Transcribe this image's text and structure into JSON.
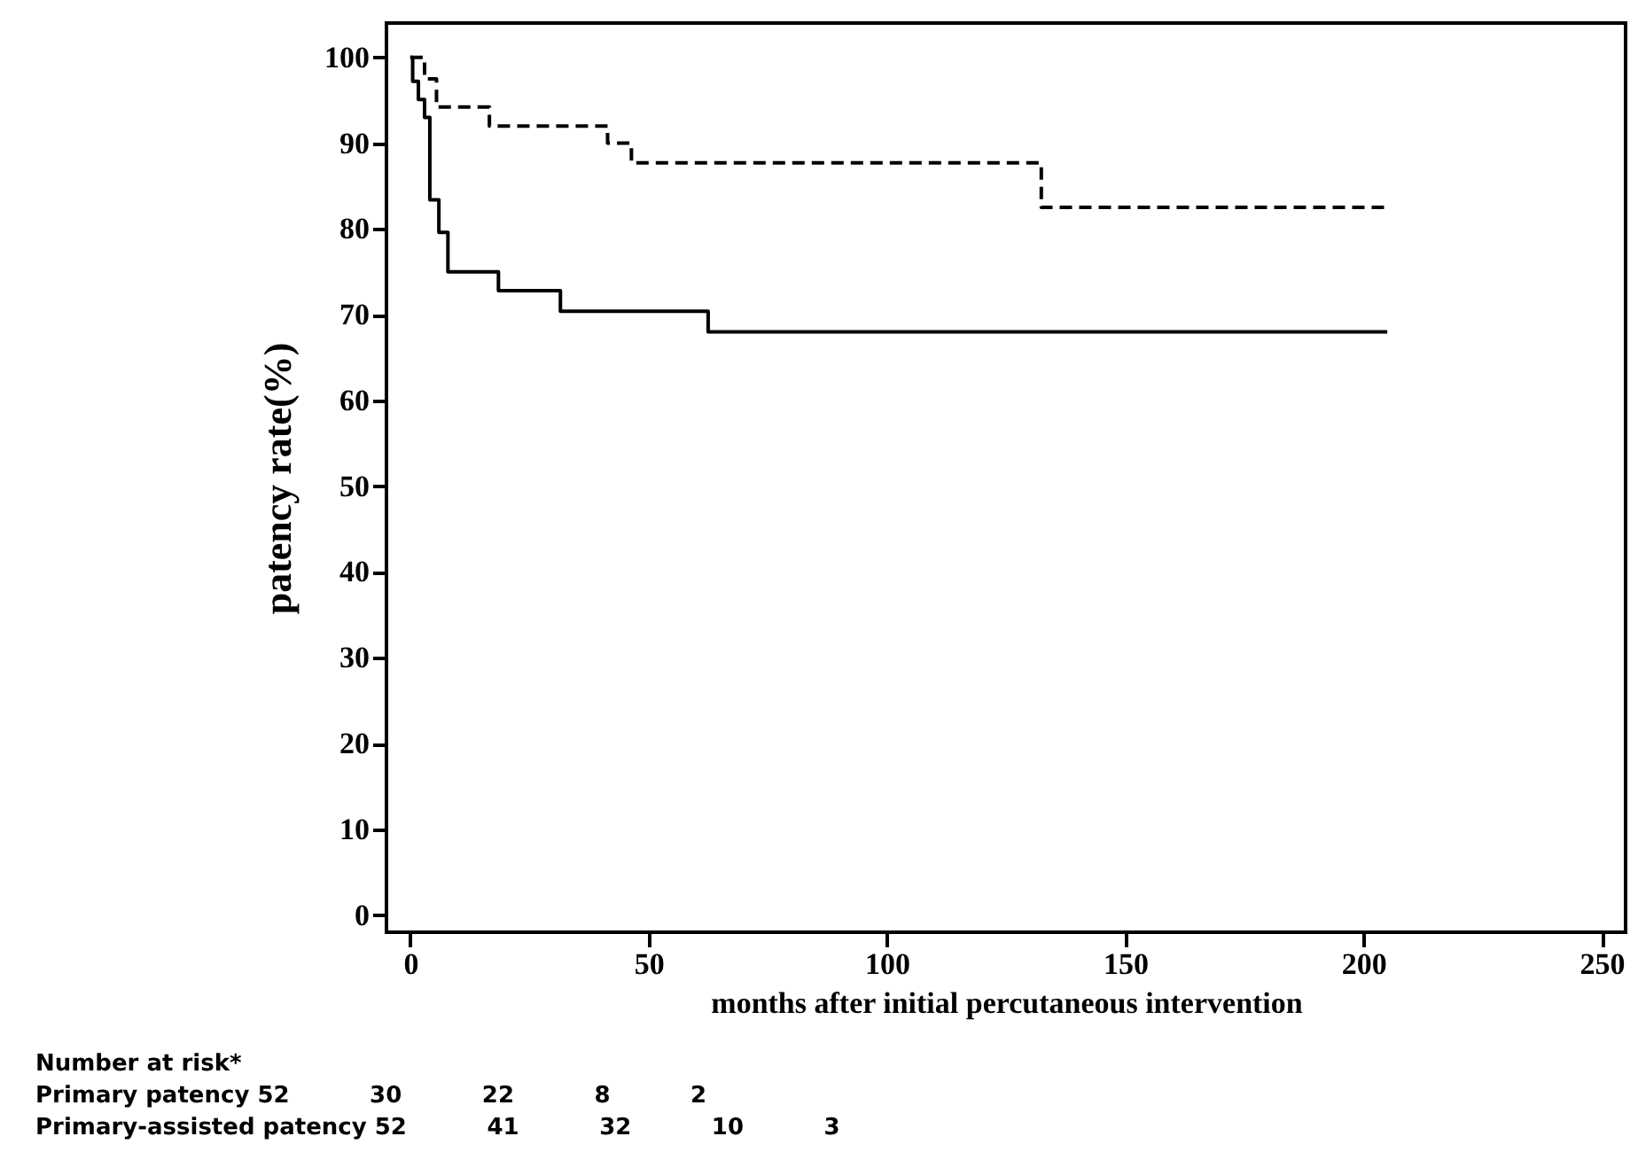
{
  "chart_data": {
    "type": "step",
    "xlabel": "months after initial percutaneous intervention",
    "ylabel": "patency rate(%)",
    "xlim": [
      -5,
      255
    ],
    "xticks": [
      0,
      50,
      100,
      150,
      200,
      250
    ],
    "ylim": [
      -2,
      104
    ],
    "yticks": [
      0,
      10,
      20,
      30,
      40,
      50,
      60,
      70,
      80,
      90,
      100
    ],
    "grid": false,
    "marker": "none",
    "series": [
      {
        "color": "#000000",
        "line_style": "solid",
        "x": [
          0,
          0.5,
          1.7,
          3,
          4.1,
          6,
          7.9,
          18.5,
          31.5,
          62.5,
          205
        ],
        "values": [
          100,
          97.2,
          95.1,
          93,
          83.4,
          79.6,
          75,
          72.8,
          70.4,
          68,
          68
        ]
      },
      {
        "color": "#000000",
        "line_style": "dashed",
        "x": [
          0,
          3,
          5.5,
          16.6,
          41.4,
          46.4,
          132.4,
          205
        ],
        "values": [
          100,
          97.5,
          94.2,
          92,
          90,
          87.7,
          82.5,
          82.5
        ]
      }
    ],
    "annotations": [
      "Number at risk*",
      "Primary patency 52          30          22          8          2",
      "Primary-assisted patency 52          41          32          10          3"
    ]
  }
}
